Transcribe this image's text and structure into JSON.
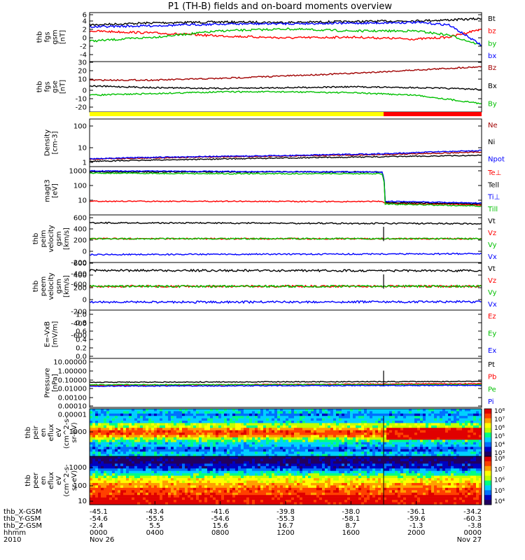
{
  "title": "P1 (TH-B) fields and on-board moments overview",
  "colors": {
    "black": "#000000",
    "red": "#ff0000",
    "green": "#00e000",
    "blue": "#0000ff",
    "darkred": "#a00000",
    "yellow": "#ffff00"
  },
  "panels": [
    {
      "id": "p1",
      "ylabel": [
        "thb",
        "fgs",
        "gsm",
        "[nT]"
      ],
      "ticks": [
        "6",
        "4",
        "2",
        "0",
        "-2",
        "-4"
      ],
      "legend": [
        {
          "text": "Bt",
          "color": "#000000"
        },
        {
          "text": "bz",
          "color": "#ff0000"
        },
        {
          "text": "by",
          "color": "#00c000"
        },
        {
          "text": "bx",
          "color": "#0000ff"
        }
      ]
    },
    {
      "id": "p2",
      "ylabel": [
        "thb",
        "fgs",
        "gse",
        "[nT]"
      ],
      "ticks": [
        "30",
        "20",
        "10",
        "0",
        "-10",
        "-20"
      ],
      "legend": [
        {
          "text": "Bz",
          "color": "#a00000"
        },
        {
          "text": "Bx",
          "color": "#000000"
        },
        {
          "text": "By",
          "color": "#00c000"
        }
      ]
    },
    {
      "id": "p3",
      "ylabel": [
        "Density",
        "[cm-3]"
      ],
      "ticks": [
        "100",
        "10",
        "1"
      ],
      "legend": [
        {
          "text": "Ne",
          "color": "#a00000"
        },
        {
          "text": "Ni",
          "color": "#000000"
        },
        {
          "text": "Npot",
          "color": "#0000ff"
        }
      ]
    },
    {
      "id": "p4",
      "ylabel": [
        "magt3",
        "[eV]"
      ],
      "ticks": [
        "1000",
        "100",
        "10"
      ],
      "legend": [
        {
          "text": "Te⊥",
          "color": "#ff0000"
        },
        {
          "text": "Tell",
          "color": "#000000"
        },
        {
          "text": "Ti⊥",
          "color": "#0000ff"
        },
        {
          "text": "Till",
          "color": "#00c000"
        }
      ]
    },
    {
      "id": "p5",
      "ylabel": [
        "thb",
        "peim",
        "velocity",
        "gsm",
        "[km/s]"
      ],
      "ticks": [
        "600",
        "400",
        "200",
        "0",
        "-200",
        "-400",
        "-600"
      ],
      "legend": [
        {
          "text": "Vt",
          "color": "#000000"
        },
        {
          "text": "Vz",
          "color": "#ff0000"
        },
        {
          "text": "Vy",
          "color": "#00c000"
        },
        {
          "text": "Vx",
          "color": "#0000ff"
        }
      ]
    },
    {
      "id": "p6",
      "ylabel": [
        "thb",
        "peem",
        "velocity",
        "gsm",
        "[km/s]"
      ],
      "ticks": [
        "600",
        "400",
        "200",
        "0",
        "-200",
        "-400",
        "-600"
      ],
      "legend": [
        {
          "text": "Vt",
          "color": "#000000"
        },
        {
          "text": "Vz",
          "color": "#ff0000"
        },
        {
          "text": "Vy",
          "color": "#00c000"
        },
        {
          "text": "Vx",
          "color": "#0000ff"
        }
      ]
    },
    {
      "id": "p7",
      "ylabel": [
        "E=-VxB",
        "[mV/m]"
      ],
      "ticks": [
        "1.0",
        "0.8",
        "0.6",
        "0.4",
        "0.2",
        "0.0"
      ],
      "legend": [
        {
          "text": "Ez",
          "color": "#ff0000"
        },
        {
          "text": "Ey",
          "color": "#00c000"
        },
        {
          "text": "Ex",
          "color": "#0000ff"
        }
      ]
    },
    {
      "id": "p8",
      "ylabel": [
        "Pressure",
        "[nPa]"
      ],
      "ticks": [
        "10.00000",
        "1.00000",
        "0.10000",
        "0.01000",
        "0.00100",
        "0.00010",
        "0.00001"
      ],
      "legend": [
        {
          "text": "Pt",
          "color": "#000000"
        },
        {
          "text": "Pb",
          "color": "#ff0000"
        },
        {
          "text": "Pe",
          "color": "#00c000"
        },
        {
          "text": "Pi",
          "color": "#0000ff"
        }
      ]
    },
    {
      "id": "p9",
      "ylabel": [
        "thb",
        "peir",
        "en",
        "eflux",
        "eV",
        "(cm^2-s-",
        "sr-eV)"
      ],
      "ticks": [
        "1000"
      ],
      "colorbar": [
        "10⁸",
        "10⁷",
        "10⁶",
        "10⁵",
        "10⁴",
        "10³"
      ]
    },
    {
      "id": "p10",
      "ylabel": [
        "thb",
        "peer",
        "en",
        "eflux",
        "eV",
        "(cm^2-s-",
        "sr-eV)"
      ],
      "ticks": [
        "1000",
        "100",
        "10"
      ],
      "colorbar": [
        "10⁸",
        "10⁷",
        "10⁶",
        "10⁵",
        "10⁴"
      ]
    }
  ],
  "bottom_axis": {
    "row_labels": [
      "thb_X-GSM",
      "thb_Y-GSM",
      "thb_Z-GSM",
      "hhmm",
      "2010"
    ],
    "columns": [
      [
        "-45.1",
        "-54.6",
        "-2.4",
        "0000",
        "Nov 26"
      ],
      [
        "-43.4",
        "-55.5",
        "5.5",
        "0400",
        ""
      ],
      [
        "-41.6",
        "-54.6",
        "15.6",
        "0800",
        ""
      ],
      [
        "-39.8",
        "-55.3",
        "16.7",
        "1200",
        ""
      ],
      [
        "-38.0",
        "-58.1",
        "8.7",
        "1600",
        ""
      ],
      [
        "-36.1",
        "-59.6",
        "-1.3",
        "2000",
        ""
      ],
      [
        "-34.2",
        "-60.3",
        "-3.8",
        "0000",
        "Nov 27"
      ]
    ]
  },
  "chart_data": {
    "type": "line",
    "title": "P1 (TH-B) fields and on-board moments overview",
    "xlabel": "hhmm",
    "x_ticks": [
      "0000",
      "0400",
      "0800",
      "1200",
      "1600",
      "2000",
      "0000"
    ],
    "x_range": [
      "2010-11-26 00:00",
      "2010-11-27 00:00"
    ],
    "panels": [
      {
        "name": "thb fgs gsm [nT]",
        "ylim": [
          -6,
          6
        ],
        "series": [
          {
            "name": "Bt",
            "color": "#000000",
            "x": [
              0,
              4,
              8,
              12,
              16,
              20,
              22,
              24
            ],
            "values": [
              3,
              3.5,
              3.7,
              3.6,
              3.8,
              4,
              4.2,
              4.5
            ]
          },
          {
            "name": "bz",
            "color": "#ff0000",
            "x": [
              0,
              4,
              8,
              12,
              16,
              20,
              22,
              24
            ],
            "values": [
              1.5,
              1,
              0.3,
              -0.2,
              0,
              -0.5,
              0,
              2
            ]
          },
          {
            "name": "by",
            "color": "#00c000",
            "x": [
              0,
              4,
              8,
              12,
              16,
              20,
              22,
              24
            ],
            "values": [
              -1,
              0,
              1.5,
              2,
              1.5,
              1.5,
              0.5,
              -2
            ]
          },
          {
            "name": "bx",
            "color": "#0000ff",
            "x": [
              0,
              4,
              8,
              12,
              16,
              20,
              22,
              24
            ],
            "values": [
              2.5,
              2.8,
              3.2,
              3.3,
              3.4,
              3.6,
              3,
              -2
            ]
          }
        ]
      },
      {
        "name": "thb fgs gse [nT]",
        "ylim": [
          -30,
          30
        ],
        "series": [
          {
            "name": "Bz",
            "color": "#a00000",
            "x": [
              0,
              4,
              8,
              12,
              16,
              20,
              24
            ],
            "values": [
              8,
              8,
              10,
              13,
              16,
              20,
              24
            ]
          },
          {
            "name": "Bx",
            "color": "#000000",
            "x": [
              0,
              4,
              8,
              12,
              16,
              20,
              24
            ],
            "values": [
              1,
              -1,
              -2,
              -1,
              0,
              -1,
              -3
            ]
          },
          {
            "name": "By",
            "color": "#00c000",
            "x": [
              0,
              4,
              8,
              12,
              16,
              20,
              24
            ],
            "values": [
              -10,
              -8,
              -6,
              -6,
              -7,
              -10,
              -20
            ]
          }
        ]
      },
      {
        "name": "Density [cm-3]",
        "ylim": [
          1,
          200
        ],
        "scale": "log",
        "series": [
          {
            "name": "Ne",
            "color": "#a00000",
            "x": [
              0,
              6,
              12,
              18,
              24
            ],
            "values": [
              2.3,
              2.8,
              3.2,
              3.8,
              5
            ]
          },
          {
            "name": "Ni",
            "color": "#000000",
            "x": [
              0,
              6,
              12,
              18,
              24
            ],
            "values": [
              1.8,
              2.2,
              2.6,
              3,
              3.5
            ]
          },
          {
            "name": "Npot",
            "color": "#0000ff",
            "x": [
              0,
              6,
              12,
              18,
              24
            ],
            "values": [
              2.4,
              3,
              3.4,
              4.2,
              6
            ]
          }
        ]
      },
      {
        "name": "magt3 [eV]",
        "ylim": [
          5,
          1500
        ],
        "scale": "log",
        "series": [
          {
            "name": "Te⊥",
            "color": "#ff0000",
            "x": [
              0,
              8,
              16,
              17.9,
              18.1,
              24
            ],
            "values": [
              25,
              25,
              24,
              25,
              20,
              16
            ]
          },
          {
            "name": "Tell",
            "color": "#000000",
            "x": [
              0,
              8,
              16,
              17.9,
              18.1,
              24
            ],
            "values": [
              800,
              800,
              800,
              800,
              22,
              18
            ]
          },
          {
            "name": "Ti⊥",
            "color": "#0000ff",
            "x": [
              0,
              8,
              16,
              17.9,
              18.1,
              24
            ],
            "values": [
              900,
              850,
              800,
              800,
              25,
              20
            ]
          },
          {
            "name": "Till",
            "color": "#00c000",
            "x": [
              0,
              8,
              16,
              17.9,
              18.1,
              24
            ],
            "values": [
              700,
              650,
              650,
              650,
              18,
              14
            ]
          }
        ]
      },
      {
        "name": "thb peim velocity gsm [km/s]",
        "ylim": [
          -600,
          600
        ],
        "series": [
          {
            "name": "Vt",
            "color": "#000000",
            "x": [
              0,
              24
            ],
            "values": [
              400,
              380
            ]
          },
          {
            "name": "Vz",
            "color": "#ff0000",
            "x": [
              0,
              24
            ],
            "values": [
              0,
              0
            ]
          },
          {
            "name": "Vy",
            "color": "#00c000",
            "x": [
              0,
              24
            ],
            "values": [
              0,
              0
            ]
          },
          {
            "name": "Vx",
            "color": "#0000ff",
            "x": [
              0,
              24
            ],
            "values": [
              -400,
              -380
            ]
          }
        ]
      },
      {
        "name": "thb peem velocity gsm [km/s]",
        "ylim": [
          -600,
          600
        ],
        "series": [
          {
            "name": "Vt",
            "color": "#000000",
            "x": [
              0,
              24
            ],
            "values": [
              400,
              390
            ]
          },
          {
            "name": "Vz",
            "color": "#ff0000",
            "x": [
              0,
              24
            ],
            "values": [
              0,
              0
            ]
          },
          {
            "name": "Vy",
            "color": "#00c000",
            "x": [
              0,
              24
            ],
            "values": [
              0,
              0
            ]
          },
          {
            "name": "Vx",
            "color": "#0000ff",
            "x": [
              0,
              24
            ],
            "values": [
              -400,
              -390
            ]
          }
        ]
      },
      {
        "name": "E=-VxB [mV/m]",
        "ylim": [
          0,
          1
        ],
        "series": []
      },
      {
        "name": "Pressure [nPa]",
        "ylim": [
          1e-05,
          10
        ],
        "scale": "log",
        "series": [
          {
            "name": "Pt",
            "color": "#000000",
            "x": [
              0,
              24
            ],
            "values": [
              0.012,
              0.015
            ]
          },
          {
            "name": "Pb",
            "color": "#ff0000",
            "x": [
              0,
              24
            ],
            "values": [
              0.005,
              0.008
            ]
          },
          {
            "name": "Pe",
            "color": "#00c000",
            "x": [
              0,
              24
            ],
            "values": [
              0.006,
              0.006
            ]
          },
          {
            "name": "Pi",
            "color": "#0000ff",
            "x": [
              0,
              24
            ],
            "values": [
              0.004,
              0.005
            ]
          }
        ]
      }
    ]
  }
}
